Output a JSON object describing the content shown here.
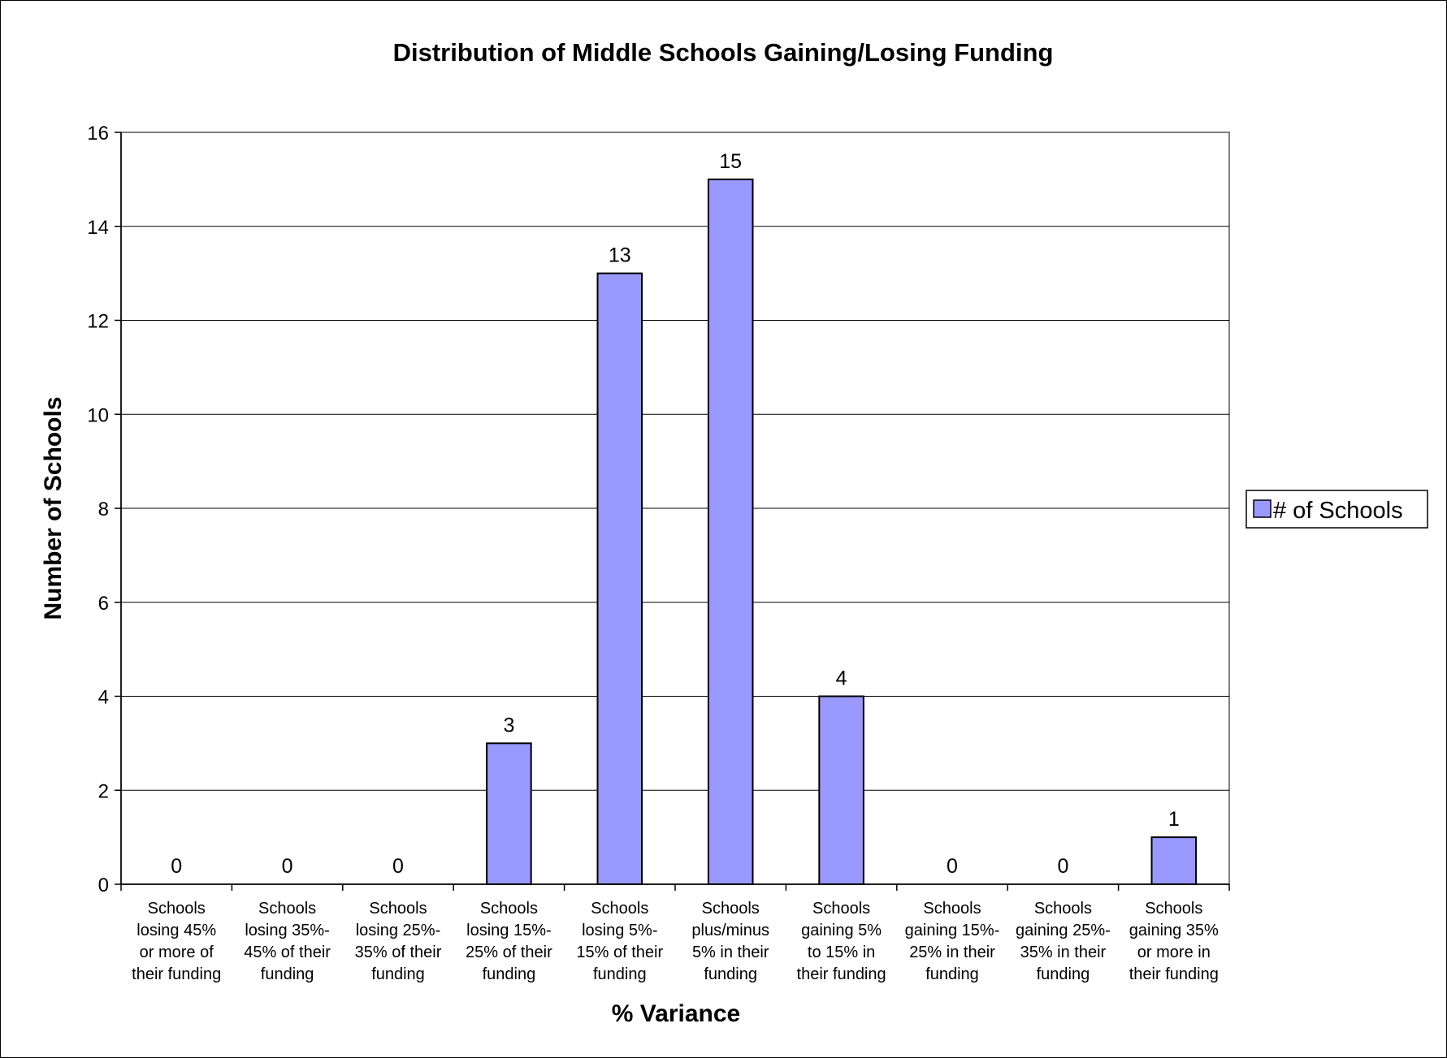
{
  "chart_data": {
    "type": "bar",
    "title": "Distribution of Middle Schools Gaining/Losing Funding",
    "xlabel": "% Variance",
    "ylabel": "Number of Schools",
    "ylim": [
      0,
      16
    ],
    "yticks": [
      "0",
      "2",
      "4",
      "6",
      "8",
      "10",
      "12",
      "14",
      "16"
    ],
    "grid": true,
    "legend_position": "right",
    "bar_color": "#9999ff",
    "categories": [
      [
        "Schools",
        "losing 45%",
        "or more of",
        "their funding"
      ],
      [
        "Schools",
        "losing 35%-",
        "45% of their",
        "funding"
      ],
      [
        "Schools",
        "losing 25%-",
        "35% of their",
        "funding"
      ],
      [
        "Schools",
        "losing 15%-",
        "25% of their",
        "funding"
      ],
      [
        "Schools",
        "losing 5%-",
        "15% of their",
        "funding"
      ],
      [
        "Schools",
        "plus/minus",
        "5% in their",
        "funding"
      ],
      [
        "Schools",
        "gaining 5%",
        "to 15% in",
        "their funding"
      ],
      [
        "Schools",
        "gaining 15%-",
        "25% in their",
        "funding"
      ],
      [
        "Schools",
        "gaining 25%-",
        "35% in their",
        "funding"
      ],
      [
        "Schools",
        "gaining 35%",
        "or more in",
        "their funding"
      ]
    ],
    "series": [
      {
        "name": "# of Schools",
        "values": [
          0,
          0,
          0,
          3,
          13,
          15,
          4,
          0,
          0,
          1
        ]
      }
    ]
  }
}
